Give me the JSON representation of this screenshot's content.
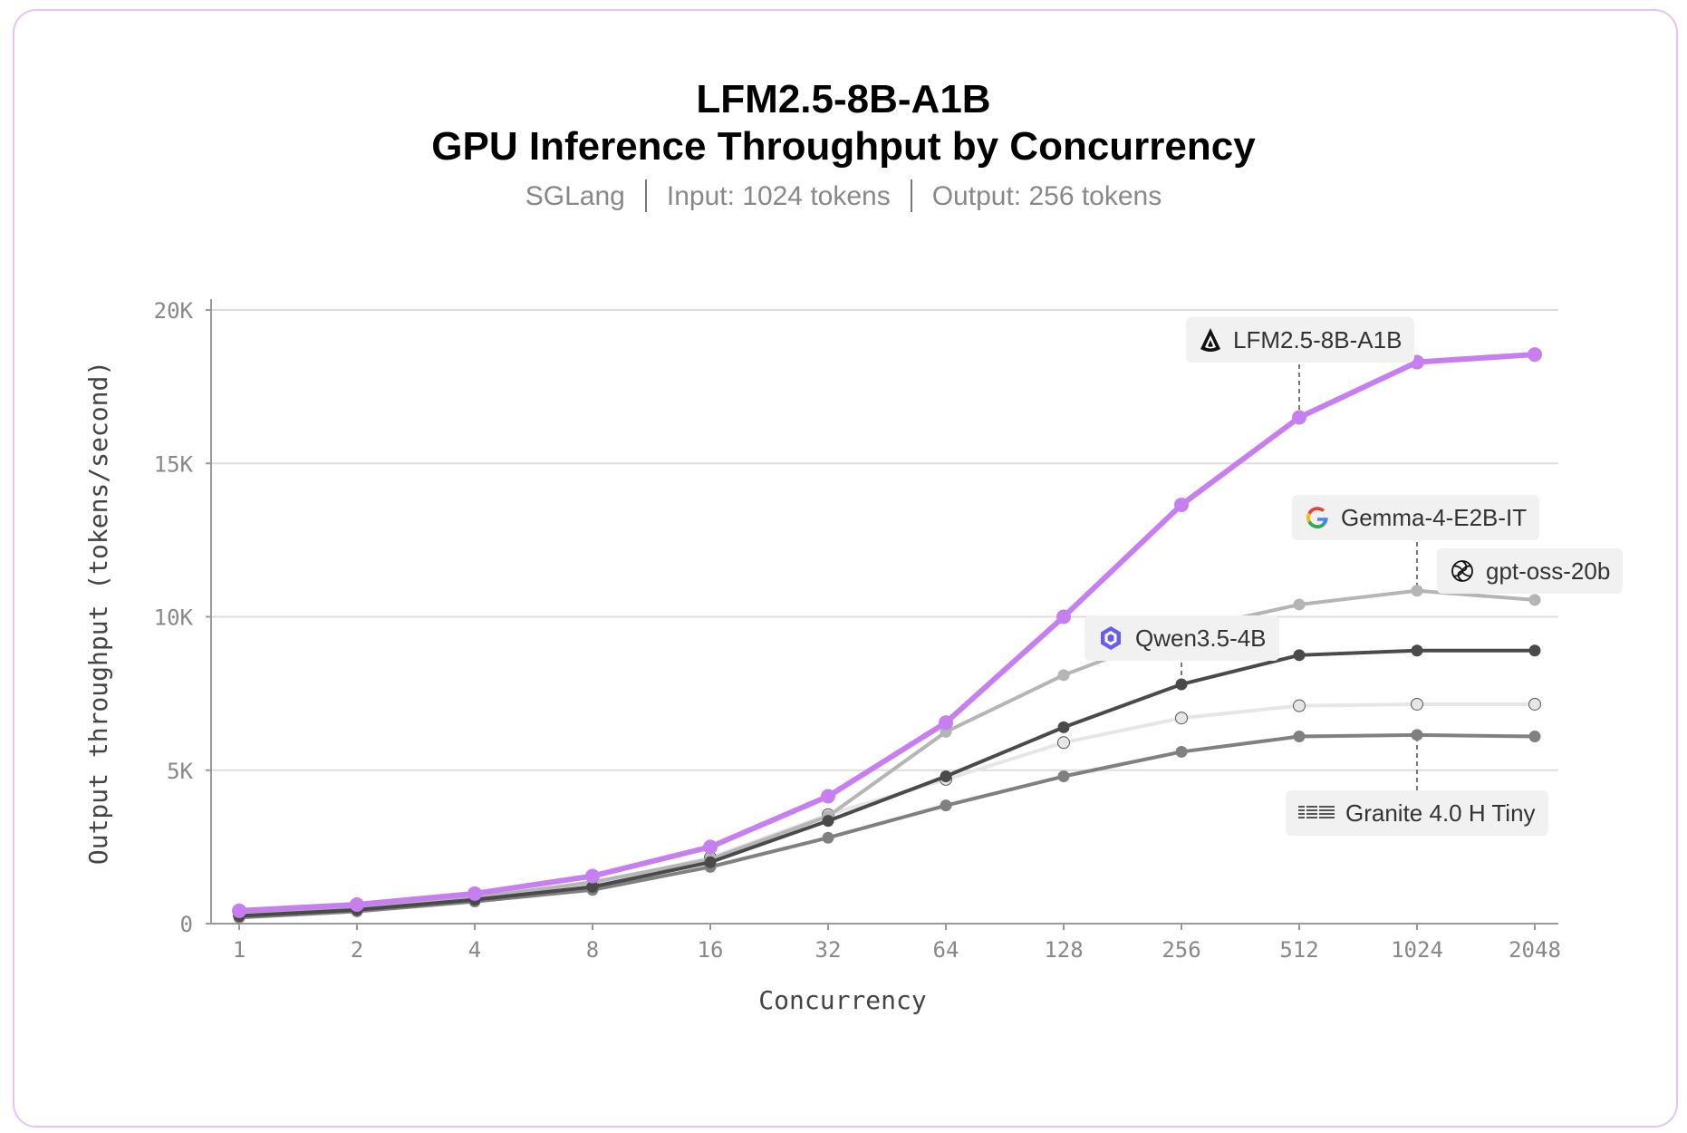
{
  "header": {
    "title_line1": "LFM2.5-8B-A1B",
    "title_line2": "GPU Inference Throughput by Concurrency",
    "subtitle_parts": [
      "SGLang",
      "Input: 1024 tokens",
      "Output: 256 tokens"
    ]
  },
  "chart_data": {
    "type": "line",
    "xlabel": "Concurrency",
    "ylabel": "Output throughput (tokens/second)",
    "x": [
      1,
      2,
      4,
      8,
      16,
      32,
      64,
      128,
      256,
      512,
      1024,
      2048
    ],
    "x_scale": "log2",
    "ylim": [
      0,
      20000
    ],
    "yticks": [
      0,
      5000,
      10000,
      15000,
      20000
    ],
    "ytick_labels": [
      "0",
      "5K",
      "10K",
      "15K",
      "20K"
    ],
    "grid": "horizontal",
    "series": [
      {
        "name": "LFM2.5-8B-A1B",
        "color": "#c77ef0",
        "values": [
          420,
          620,
          980,
          1550,
          2500,
          4150,
          6550,
          10000,
          13650,
          16500,
          18300,
          18550
        ]
      },
      {
        "name": "Gemma-4-E2B-IT",
        "color": "#b5b5b5",
        "values": [
          300,
          500,
          850,
          1350,
          2100,
          3500,
          6250,
          8100,
          9550,
          10400,
          10850,
          10550
        ]
      },
      {
        "name": "Qwen3.5-4B",
        "color": "#4a4a4a",
        "values": [
          250,
          450,
          780,
          1200,
          2000,
          3350,
          4800,
          6400,
          7800,
          8750,
          8900,
          8900
        ]
      },
      {
        "name": "gpt-oss-20b",
        "color": "#e6e6e6",
        "values": [
          280,
          480,
          820,
          1300,
          2150,
          3550,
          4700,
          5900,
          6700,
          7100,
          7150,
          7150
        ]
      },
      {
        "name": "Granite 4.0 H Tiny",
        "color": "#808080",
        "values": [
          200,
          400,
          720,
          1100,
          1850,
          2800,
          3850,
          4800,
          5600,
          6100,
          6150,
          6100
        ]
      }
    ],
    "annotations": [
      {
        "series": "LFM2.5-8B-A1B",
        "icon": "liquid-drop-icon",
        "text": "LFM2.5-8B-A1B",
        "anchor_x": 512
      },
      {
        "series": "Gemma-4-E2B-IT",
        "icon": "google-g-icon",
        "text": "Gemma-4-E2B-IT",
        "anchor_x": 1024
      },
      {
        "series": "gpt-oss-20b",
        "icon": "openai-knot-icon",
        "text": "gpt-oss-20b",
        "anchor_x": 2048
      },
      {
        "series": "Qwen3.5-4B",
        "icon": "qwen-star-icon",
        "text": "Qwen3.5-4B",
        "anchor_x": 256
      },
      {
        "series": "Granite 4.0 H Tiny",
        "icon": "ibm-logo-icon",
        "text": "Granite 4.0 H Tiny",
        "anchor_x": 1024
      }
    ]
  }
}
